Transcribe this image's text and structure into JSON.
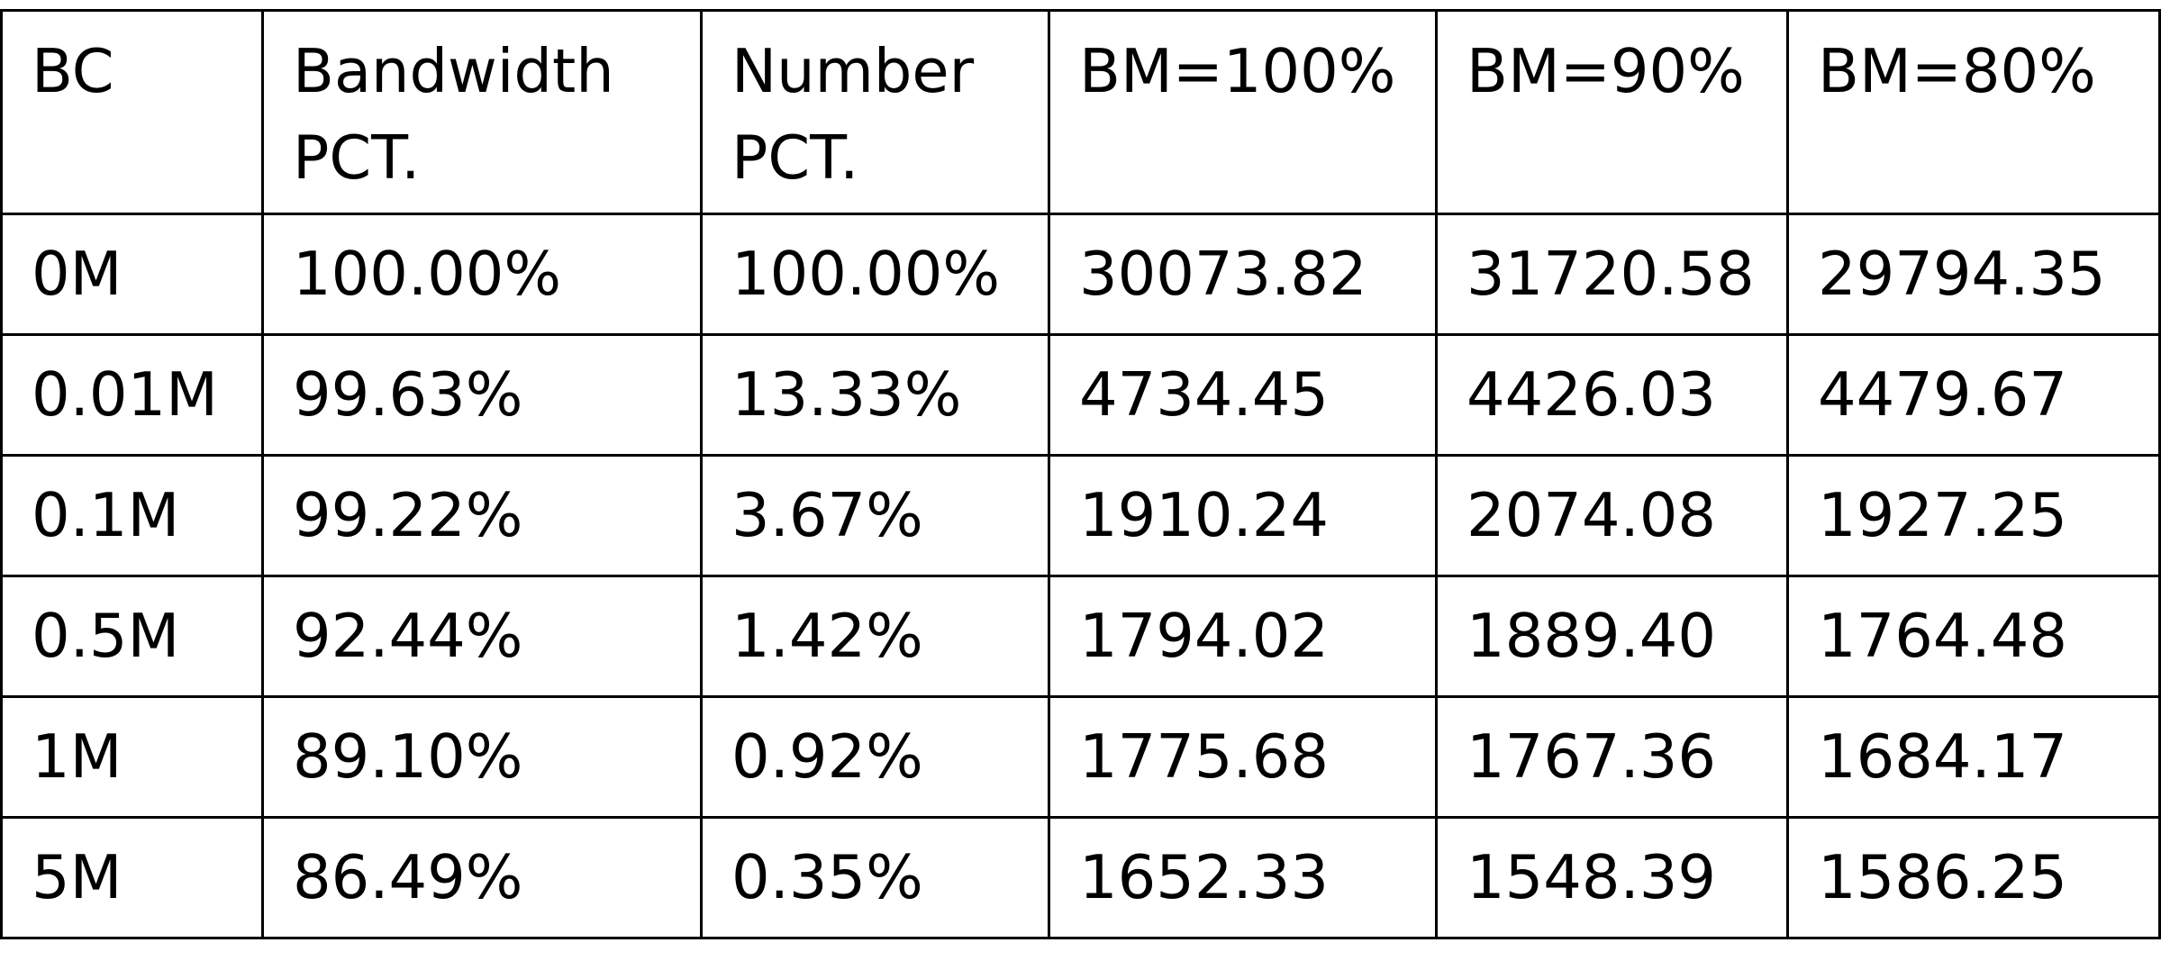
{
  "table": {
    "header": [
      {
        "lines": [
          "BC"
        ]
      },
      {
        "lines": [
          "Bandwidth",
          "PCT."
        ]
      },
      {
        "lines": [
          "Number",
          "PCT."
        ]
      },
      {
        "lines": [
          "BM=100%"
        ]
      },
      {
        "lines": [
          "BM=90%"
        ]
      },
      {
        "lines": [
          "BM=80%"
        ]
      }
    ],
    "rows": [
      [
        "0M",
        "100.00%",
        "100.00%",
        "30073.82",
        "31720.58",
        "29794.35"
      ],
      [
        "0.01M",
        "99.63%",
        "13.33%",
        "4734.45",
        "4426.03",
        "4479.67"
      ],
      [
        "0.1M",
        "99.22%",
        "3.67%",
        "1910.24",
        "2074.08",
        "1927.25"
      ],
      [
        "0.5M",
        "92.44%",
        "1.42%",
        "1794.02",
        "1889.40",
        "1764.48"
      ],
      [
        "1M",
        "89.10%",
        "0.92%",
        "1775.68",
        "1767.36",
        "1684.17"
      ],
      [
        "5M",
        "86.49%",
        "0.35%",
        "1652.33",
        "1548.39",
        "1586.25"
      ]
    ]
  }
}
